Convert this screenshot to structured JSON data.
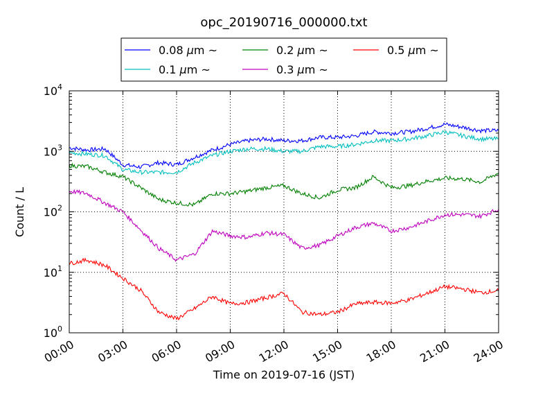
{
  "chart_data": {
    "type": "line",
    "title": "opc_20190716_000000.txt",
    "xlabel": "Time on 2019-07-16 (JST)",
    "ylabel": "Count / L",
    "y_scale": "log",
    "ylim": [
      1,
      10000
    ],
    "xlim": [
      "00:00",
      "24:00"
    ],
    "x_ticks": [
      "00:00",
      "03:00",
      "06:00",
      "09:00",
      "12:00",
      "15:00",
      "18:00",
      "21:00",
      "24:00"
    ],
    "y_ticks": [
      {
        "base": "10",
        "exp": "0"
      },
      {
        "base": "10",
        "exp": "1"
      },
      {
        "base": "10",
        "exp": "2"
      },
      {
        "base": "10",
        "exp": "3"
      },
      {
        "base": "10",
        "exp": "4"
      }
    ],
    "grid": true,
    "legend_position": "top",
    "legend": {
      "mu": "μ",
      "unit": "m",
      "tilde": "~"
    },
    "x_hours": [
      0,
      1,
      2,
      3,
      4,
      5,
      6,
      7,
      8,
      9,
      10,
      11,
      12,
      13,
      14,
      15,
      16,
      17,
      18,
      19,
      20,
      21,
      22,
      23,
      24
    ],
    "series": [
      {
        "name": "0.08",
        "color": "#0000ff",
        "values": [
          1150,
          1050,
          1100,
          600,
          550,
          650,
          600,
          800,
          1050,
          1300,
          1500,
          1600,
          1500,
          1500,
          1700,
          1700,
          1800,
          2100,
          2000,
          2100,
          2400,
          2800,
          2500,
          2200,
          2200
        ]
      },
      {
        "name": "0.1",
        "color": "#00bfbf",
        "values": [
          950,
          900,
          850,
          500,
          450,
          450,
          450,
          650,
          850,
          1000,
          1100,
          1100,
          1000,
          1000,
          1200,
          1200,
          1300,
          1500,
          1500,
          1600,
          1800,
          2100,
          1800,
          1600,
          1600
        ]
      },
      {
        "name": "0.2",
        "color": "#008000",
        "values": [
          580,
          560,
          450,
          380,
          250,
          160,
          140,
          130,
          200,
          200,
          220,
          250,
          270,
          200,
          170,
          230,
          250,
          380,
          250,
          270,
          320,
          360,
          350,
          310,
          440
        ]
      },
      {
        "name": "0.3",
        "color": "#bf00bf",
        "values": [
          220,
          200,
          140,
          100,
          50,
          25,
          16,
          20,
          48,
          40,
          38,
          45,
          42,
          25,
          28,
          40,
          55,
          65,
          48,
          55,
          70,
          90,
          90,
          85,
          110
        ]
      },
      {
        "name": "0.5",
        "color": "#ff0000",
        "values": [
          14,
          16,
          13,
          8,
          5,
          2.2,
          1.7,
          2.5,
          4,
          3,
          3.2,
          3.8,
          4.5,
          2.2,
          2.0,
          2.2,
          3,
          3.2,
          3.1,
          3.5,
          4.5,
          5.8,
          5.3,
          4.6,
          5
        ]
      }
    ]
  }
}
